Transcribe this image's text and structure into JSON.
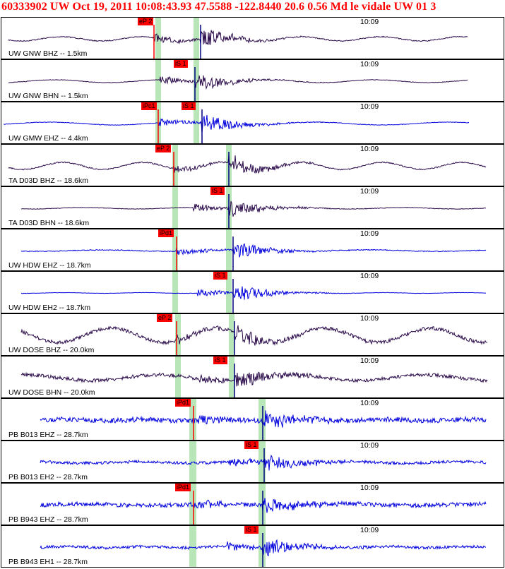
{
  "header": {
    "title": "60333902 UW Oct 19, 2011 10:08:43.93    47.5588 -122.8440 20.6 0.56 Md le vidale UW 01   3"
  },
  "colors": {
    "title": "#ff0000",
    "trace_dark": "#2a0a4a",
    "trace_blue": "#0000dd",
    "pick": "#ff0000",
    "window": "#b8e6b8"
  },
  "time_label": "10:09",
  "traces": [
    {
      "label": "UW GNW BHZ -- 1.5km",
      "pick": "eP 2",
      "color": "dark",
      "amp": 3,
      "noise": 0.7
    },
    {
      "label": "UW GNW BHN -- 1.5km",
      "pick": "iS 1",
      "color": "dark",
      "amp": 2,
      "noise": 0.4
    },
    {
      "label": "UW GMW EHZ -- 4.4km",
      "pick": "iPc1",
      "pick2": "iS 1",
      "color": "blue",
      "amp": 2,
      "noise": 0.4
    },
    {
      "label": "TA D03D BHZ -- 18.6km",
      "pick": "eP 2",
      "color": "dark",
      "amp": 5,
      "noise": 0.8
    },
    {
      "label": "TA D03D BHN -- 18.6km",
      "pick": "iS 1",
      "color": "dark",
      "amp": 1,
      "noise": 0.4
    },
    {
      "label": "UW HDW EHZ -- 18.7km",
      "pick": "iPd1",
      "color": "blue",
      "amp": 1,
      "noise": 0.6
    },
    {
      "label": "UW HDW EH2 -- 18.7km",
      "pick": "iS 1",
      "color": "blue",
      "amp": 0.5,
      "noise": 0.2
    },
    {
      "label": "UW DOSE BHZ -- 20.0km",
      "pick": "eP 2",
      "color": "dark",
      "amp": 10,
      "noise": 2.5
    },
    {
      "label": "UW DOSE BHN -- 20.0km",
      "pick": "iS 1",
      "color": "dark",
      "amp": 4,
      "noise": 2.5
    },
    {
      "label": "PB B013 EHZ -- 28.7km",
      "pick": "iPd1",
      "color": "blue",
      "amp": 1,
      "noise": 3.5
    },
    {
      "label": "PB B013 EH2 -- 28.7km",
      "pick": "iS 1",
      "color": "blue",
      "amp": 1,
      "noise": 2.0
    },
    {
      "label": "PB B943 EHZ -- 28.7km",
      "pick": "iPd1",
      "color": "blue",
      "amp": 1,
      "noise": 3.0
    },
    {
      "label": "PB B943 EH1 -- 28.7km",
      "pick": "iS 1",
      "color": "blue",
      "amp": 1,
      "noise": 2.0
    }
  ]
}
